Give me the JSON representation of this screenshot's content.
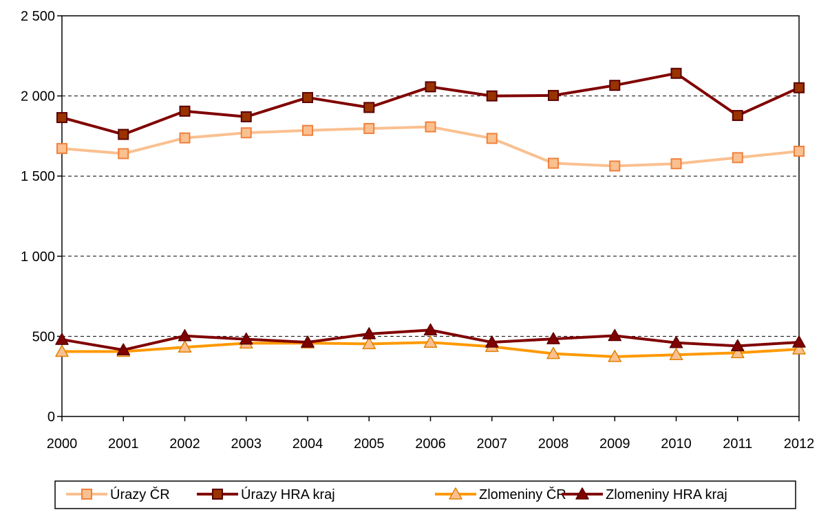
{
  "chart_data": {
    "type": "line",
    "title": "",
    "xlabel": "",
    "ylabel": "",
    "x": [
      "2000",
      "2001",
      "2002",
      "2003",
      "2004",
      "2005",
      "2006",
      "2007",
      "2008",
      "2009",
      "2010",
      "2011",
      "2012"
    ],
    "ylim": [
      0,
      2500
    ],
    "yticks": [
      0,
      500,
      1000,
      1500,
      2000,
      2500
    ],
    "ytick_labels": [
      "0",
      "500",
      "1 000",
      "1 500",
      "2 000",
      "2 500"
    ],
    "grid": "horizontal dashed",
    "legend_position": "bottom",
    "series": [
      {
        "name": "Úrazy ČR",
        "color": "#FAC090",
        "marker": "square",
        "marker_fill": "#FAC090",
        "marker_edge": "#F0803C",
        "values": [
          1672,
          1640,
          1738,
          1770,
          1785,
          1797,
          1807,
          1735,
          1580,
          1563,
          1577,
          1615,
          1655
        ]
      },
      {
        "name": "Úrazy HRA  kraj",
        "color": "#800000",
        "marker": "square",
        "marker_fill": "#993300",
        "marker_edge": "#5A0000",
        "values": [
          1865,
          1760,
          1905,
          1870,
          1990,
          1928,
          2057,
          2000,
          2003,
          2066,
          2141,
          1878,
          2051
        ]
      },
      {
        "name": "Zlomeniny ČR",
        "color": "#FF9900",
        "marker": "triangle",
        "marker_fill": "#FAC090",
        "marker_edge": "#E08000",
        "values": [
          405,
          405,
          432,
          457,
          458,
          453,
          462,
          436,
          392,
          373,
          385,
          397,
          420
        ]
      },
      {
        "name": "Zlomeniny HRA kraj",
        "color": "#800000",
        "marker": "triangle",
        "marker_fill": "#800000",
        "marker_edge": "#5A0000",
        "values": [
          480,
          415,
          503,
          482,
          463,
          515,
          539,
          463,
          484,
          504,
          460,
          440,
          463
        ]
      }
    ]
  }
}
